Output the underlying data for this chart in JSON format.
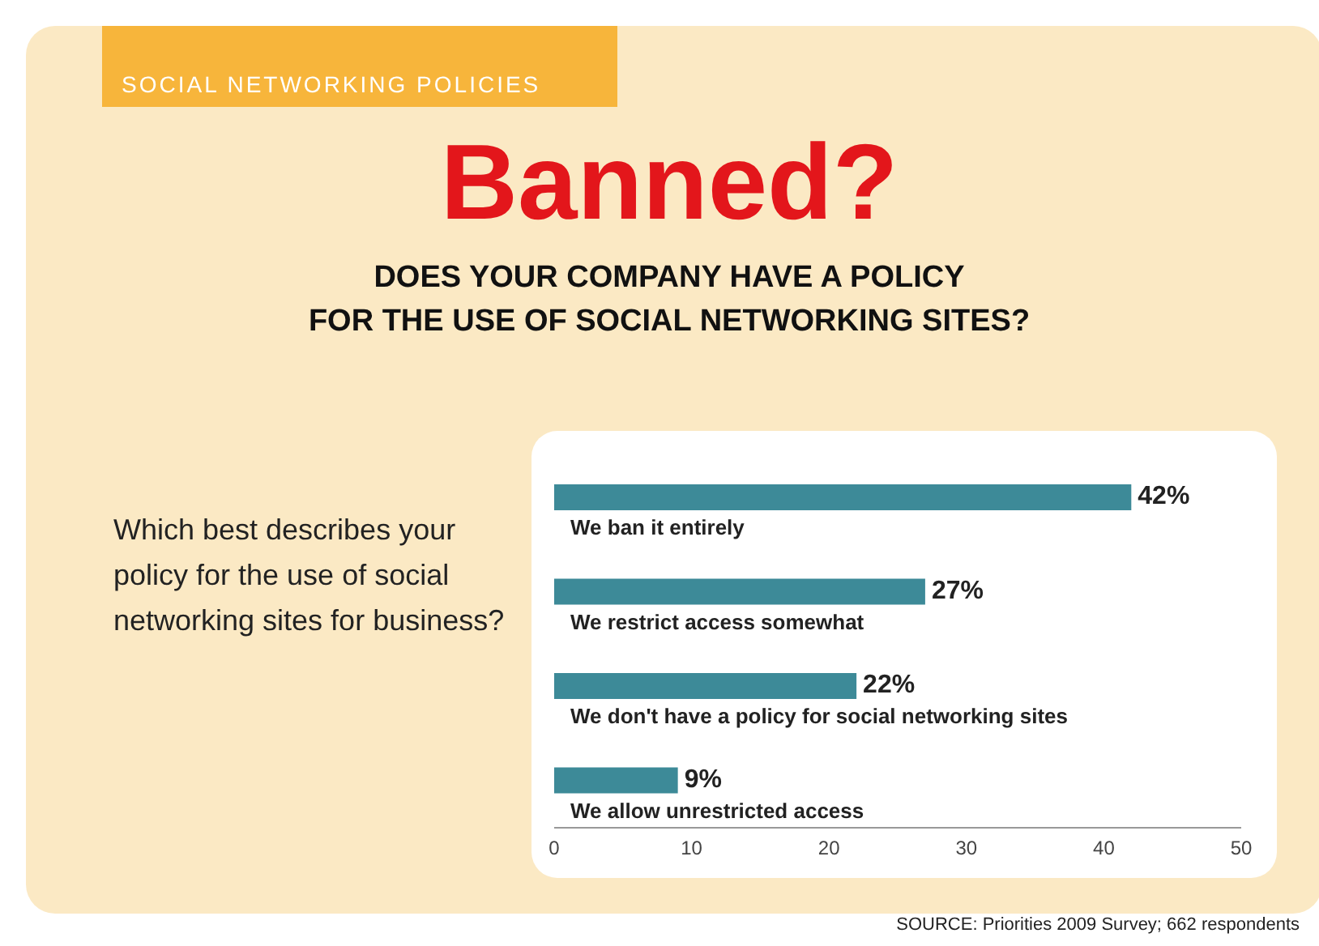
{
  "chart_data": {
    "type": "bar",
    "orientation": "horizontal",
    "title": "Banned?",
    "subtitle": "DOES YOUR COMPANY HAVE A POLICY\nFOR THE USE OF SOCIAL NETWORKING SITES?",
    "categories": [
      "We ban it entirely",
      "We restrict access somewhat",
      "We don't have a policy for social networking sites",
      "We allow unrestricted access"
    ],
    "values": [
      42,
      27,
      22,
      9
    ],
    "value_labels": [
      "42%",
      "27%",
      "22%",
      "9%"
    ],
    "color": "#3d8a98",
    "xlim": [
      0,
      50
    ],
    "xticks": [
      0,
      10,
      20,
      30,
      40,
      50
    ],
    "tick_labels": "x",
    "grid": false,
    "legend": false,
    "annotations": [
      "SOCIAL NETWORKING POLICIES",
      "Which best describes your policy for the use of social networking sites for business?",
      "SOURCE: Priorities 2009 Survey; 662 respondents"
    ]
  }
}
